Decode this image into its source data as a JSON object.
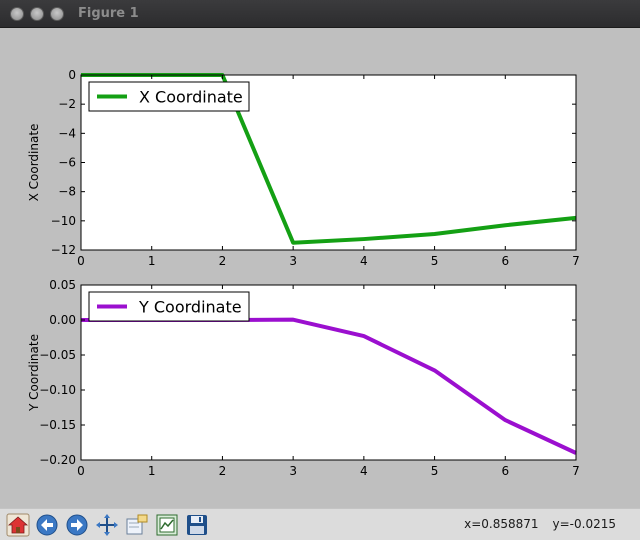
{
  "window": {
    "title": "Figure 1"
  },
  "chart_data": [
    {
      "type": "line",
      "x": [
        0,
        1,
        2,
        3,
        4,
        5,
        6,
        7
      ],
      "series": [
        {
          "name": "X Coordinate",
          "values": [
            0,
            0,
            0,
            -11.5,
            -11.25,
            -10.9,
            -10.3,
            -9.8
          ],
          "color": "#14a014"
        }
      ],
      "xlabel": "",
      "ylabel": "X Coordinate",
      "xlim": [
        0,
        7
      ],
      "ylim": [
        -12,
        0
      ],
      "xticks": [
        0,
        1,
        2,
        3,
        4,
        5,
        6,
        7
      ],
      "yticks": [
        0,
        -2,
        -4,
        -6,
        -8,
        -10,
        -12
      ],
      "xtick_labels": [
        "0",
        "1",
        "2",
        "3",
        "4",
        "5",
        "6",
        "7"
      ],
      "ytick_labels": [
        "0",
        "−2",
        "−4",
        "−6",
        "−8",
        "−10",
        "−12"
      ],
      "grid": false,
      "legend": "upper-left"
    },
    {
      "type": "line",
      "x": [
        0,
        1,
        2,
        3,
        4,
        5,
        6,
        7
      ],
      "series": [
        {
          "name": "Y Coordinate",
          "values": [
            0,
            0,
            0,
            0.0005,
            -0.023,
            -0.072,
            -0.143,
            -0.19
          ],
          "color": "#9b0fcf"
        }
      ],
      "xlabel": "",
      "ylabel": "Y Coordinate",
      "xlim": [
        0,
        7
      ],
      "ylim": [
        -0.2,
        0.05
      ],
      "xticks": [
        0,
        1,
        2,
        3,
        4,
        5,
        6,
        7
      ],
      "yticks": [
        0.05,
        0,
        -0.05,
        -0.1,
        -0.15,
        -0.2
      ],
      "xtick_labels": [
        "0",
        "1",
        "2",
        "3",
        "4",
        "5",
        "6",
        "7"
      ],
      "ytick_labels": [
        "0.05",
        "0.00",
        "−0.05",
        "−0.10",
        "−0.15",
        "−0.20"
      ],
      "grid": false,
      "legend": "upper-left"
    }
  ],
  "toolbar": {
    "buttons": [
      {
        "name": "home-button",
        "icon": "home-icon"
      },
      {
        "name": "back-button",
        "icon": "arrow-left-icon"
      },
      {
        "name": "forward-button",
        "icon": "arrow-right-icon"
      },
      {
        "name": "pan-button",
        "icon": "move-icon"
      },
      {
        "name": "zoom-button",
        "icon": "zoom-rect-icon"
      },
      {
        "name": "subplots-button",
        "icon": "subplots-icon"
      },
      {
        "name": "save-button",
        "icon": "save-icon"
      }
    ]
  },
  "status": {
    "x": "x=0.858871",
    "y": "y=-0.0215"
  }
}
